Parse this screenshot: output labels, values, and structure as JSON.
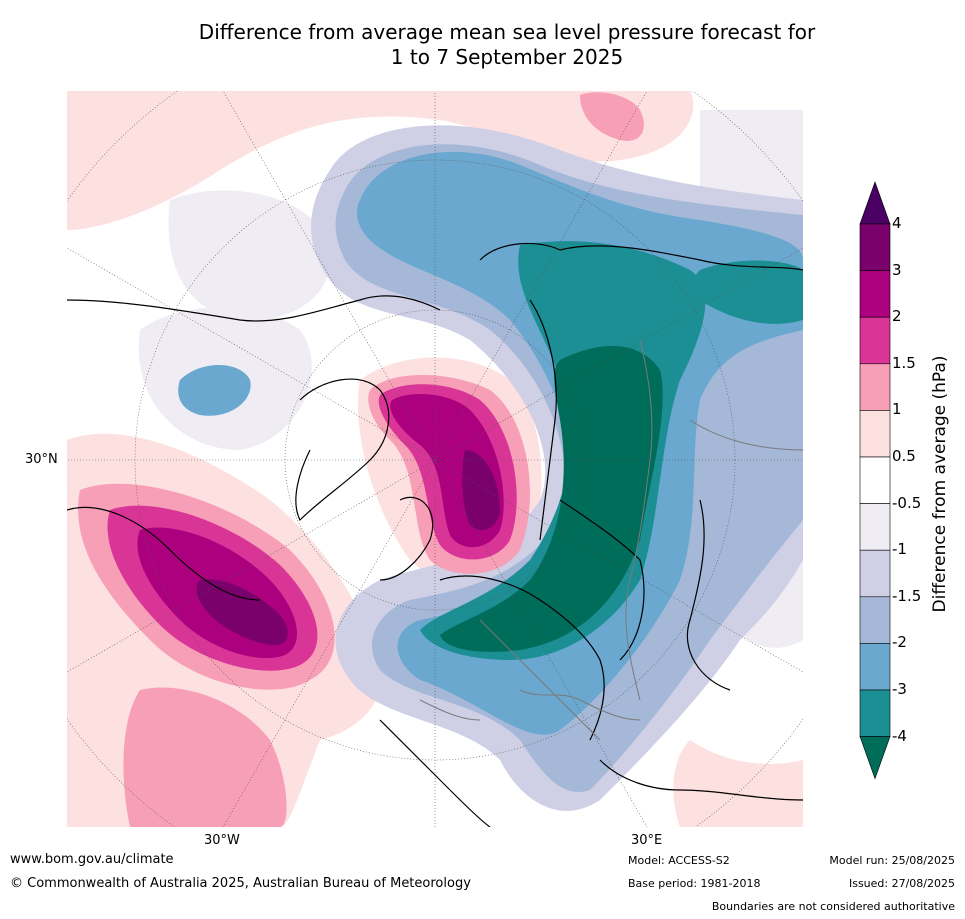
{
  "title": {
    "line1": "Difference from average mean sea level pressure forecast for",
    "line2": "1 to 7 September 2025"
  },
  "map": {
    "projection": "north-polar-stereographic",
    "lat_label": "30°N",
    "lon_labels": {
      "west": "30°W",
      "east": "30°E"
    }
  },
  "colorbar": {
    "label": "Difference from average (hPa)",
    "ticks": [
      "4",
      "3",
      "2",
      "1.5",
      "1",
      "0.5",
      "-0.5",
      "-1",
      "-1.5",
      "-2",
      "-3",
      "-4"
    ],
    "colors": {
      "extend_top": "#4b0064",
      "c3_4": "#7a006b",
      "c2_3": "#ad007e",
      "c1_5_2": "#d93597",
      "c1_1_5": "#f89fb8",
      "c0_5_1": "#fde0e0",
      "c_neg0_5_0_5": "#ffffff",
      "c_neg1_neg0_5": "#efecf4",
      "c_neg1_5_neg1": "#cfd0e5",
      "c_neg2_neg1_5": "#a6b8d8",
      "c_neg3_neg2": "#6aa8cf",
      "c_neg4_neg3": "#1c8f94",
      "extend_bottom": "#006c5a"
    }
  },
  "footer": {
    "url": "www.bom.gov.au/climate",
    "copyright": "© Commonwealth of Australia 2025, Australian Bureau of Meteorology",
    "model": "Model: ACCESS-S2",
    "base_period": "Base period: 1981-2018",
    "model_run": "Model run: 25/08/2025",
    "issued": "Issued: 27/08/2025",
    "disclaimer": "Boundaries are not considered authoritative"
  }
}
